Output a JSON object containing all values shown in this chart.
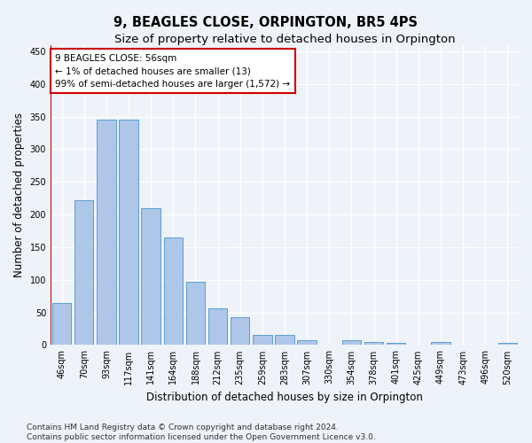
{
  "title": "9, BEAGLES CLOSE, ORPINGTON, BR5 4PS",
  "subtitle": "Size of property relative to detached houses in Orpington",
  "xlabel": "Distribution of detached houses by size in Orpington",
  "ylabel": "Number of detached properties",
  "categories": [
    "46sqm",
    "70sqm",
    "93sqm",
    "117sqm",
    "141sqm",
    "164sqm",
    "188sqm",
    "212sqm",
    "235sqm",
    "259sqm",
    "283sqm",
    "307sqm",
    "330sqm",
    "354sqm",
    "378sqm",
    "401sqm",
    "425sqm",
    "449sqm",
    "473sqm",
    "496sqm",
    "520sqm"
  ],
  "values": [
    65,
    222,
    345,
    345,
    210,
    165,
    97,
    56,
    43,
    15,
    15,
    8,
    0,
    7,
    5,
    3,
    0,
    5,
    0,
    0,
    3
  ],
  "bar_color": "#aec6e8",
  "bar_edge_color": "#5a9fd4",
  "annotation_box_text_line1": "9 BEAGLES CLOSE: 56sqm",
  "annotation_box_text_line2": "← 1% of detached houses are smaller (13)",
  "annotation_box_text_line3": "99% of semi-detached houses are larger (1,572) →",
  "annotation_box_color": "#ffffff",
  "annotation_box_edge_color": "#cc0000",
  "red_line_x": -0.5,
  "ylim": [
    0,
    460
  ],
  "yticks": [
    0,
    50,
    100,
    150,
    200,
    250,
    300,
    350,
    400,
    450
  ],
  "footer_line1": "Contains HM Land Registry data © Crown copyright and database right 2024.",
  "footer_line2": "Contains public sector information licensed under the Open Government Licence v3.0.",
  "bg_color": "#eef2f9",
  "plot_bg_color": "#eef2f9",
  "grid_color": "#ffffff",
  "title_fontsize": 10.5,
  "subtitle_fontsize": 9.5,
  "axis_label_fontsize": 8.5,
  "tick_fontsize": 7,
  "footer_fontsize": 6.5,
  "annotation_fontsize": 7.5
}
